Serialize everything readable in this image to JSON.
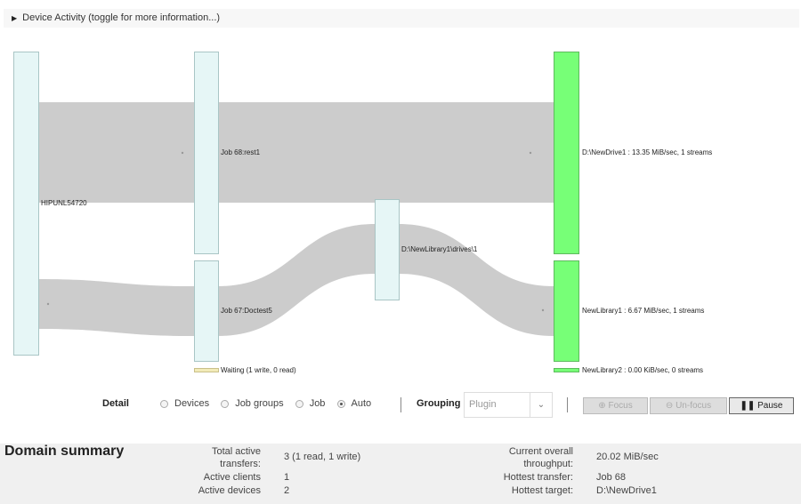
{
  "header": {
    "toggle_icon": "triangle-right-icon",
    "title": "Device Activity (toggle for more information...)"
  },
  "sankey": {
    "colors": {
      "node": "#e6f6f6",
      "node_border": "#a9c5c5",
      "flow": "#cccccc",
      "target": "#77ff77",
      "target_border": "#5dbb5d",
      "waiting": "#f2ebb8"
    },
    "nodes": {
      "client": "HIPUNL54720",
      "job68": "Job 68:rest1",
      "job67": "Job 67:Doctest5",
      "drive_path": "D:\\NewLibrary1\\drives\\1",
      "newdrive1": "D:\\NewDrive1 : 13.35 MiB/sec, 1 streams",
      "newlibrary1": "NewLibrary1 : 6.67 MiB/sec, 1 streams",
      "waiting": "Waiting (1 write, 0 read)",
      "newlibrary2": "NewLibrary2 : 0.00 KiB/sec, 0 streams"
    }
  },
  "controls": {
    "detail_label": "Detail",
    "detail_options": [
      {
        "label": "Devices",
        "checked": false
      },
      {
        "label": "Job groups",
        "checked": false
      },
      {
        "label": "Job",
        "checked": false
      },
      {
        "label": "Auto",
        "checked": true
      }
    ],
    "grouping_label": "Grouping",
    "grouping_value": "Plugin",
    "focus": "Focus",
    "unfocus": "Un-focus",
    "pause": "Pause"
  },
  "summary": {
    "title": "Domain summary",
    "left": [
      {
        "label": "Total active transfers:",
        "value": "3 (1 read, 1 write)"
      },
      {
        "label": "Active clients",
        "value": "1"
      },
      {
        "label": "Active devices",
        "value": "2"
      }
    ],
    "right": [
      {
        "label": "Current overall throughput:",
        "value": "20.02 MiB/sec"
      },
      {
        "label": "Hottest transfer:",
        "value": "Job 68"
      },
      {
        "label": "Hottest target:",
        "value": "D:\\NewDrive1"
      }
    ]
  }
}
